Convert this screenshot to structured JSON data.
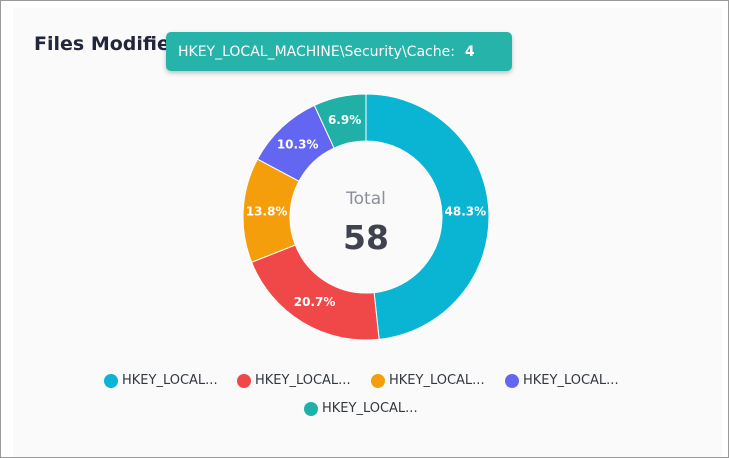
{
  "card": {
    "title": "Files Modified"
  },
  "tooltip": {
    "label": "HKEY_LOCAL_MACHINE\\Security\\Cache:",
    "value": "4"
  },
  "colors": {
    "tooltip_bg": "#26b3aa"
  },
  "chart_data": {
    "type": "pie",
    "donut": true,
    "center_label": "Total",
    "center_value": "58",
    "slices": [
      {
        "legend": "HKEY_LOCAL...",
        "label": "48.3%",
        "value": 48.3,
        "color": "#0ab5d4"
      },
      {
        "legend": "HKEY_LOCAL...",
        "label": "20.7%",
        "value": 20.7,
        "color": "#f04848"
      },
      {
        "legend": "HKEY_LOCAL...",
        "label": "13.8%",
        "value": 13.8,
        "color": "#f59e0b"
      },
      {
        "legend": "HKEY_LOCAL...",
        "label": "10.3%",
        "value": 10.3,
        "color": "#6366f1"
      },
      {
        "legend": "HKEY_LOCAL...",
        "label": "6.9%",
        "value": 6.9,
        "color": "#20b0a8"
      }
    ],
    "legend_position": "bottom"
  }
}
